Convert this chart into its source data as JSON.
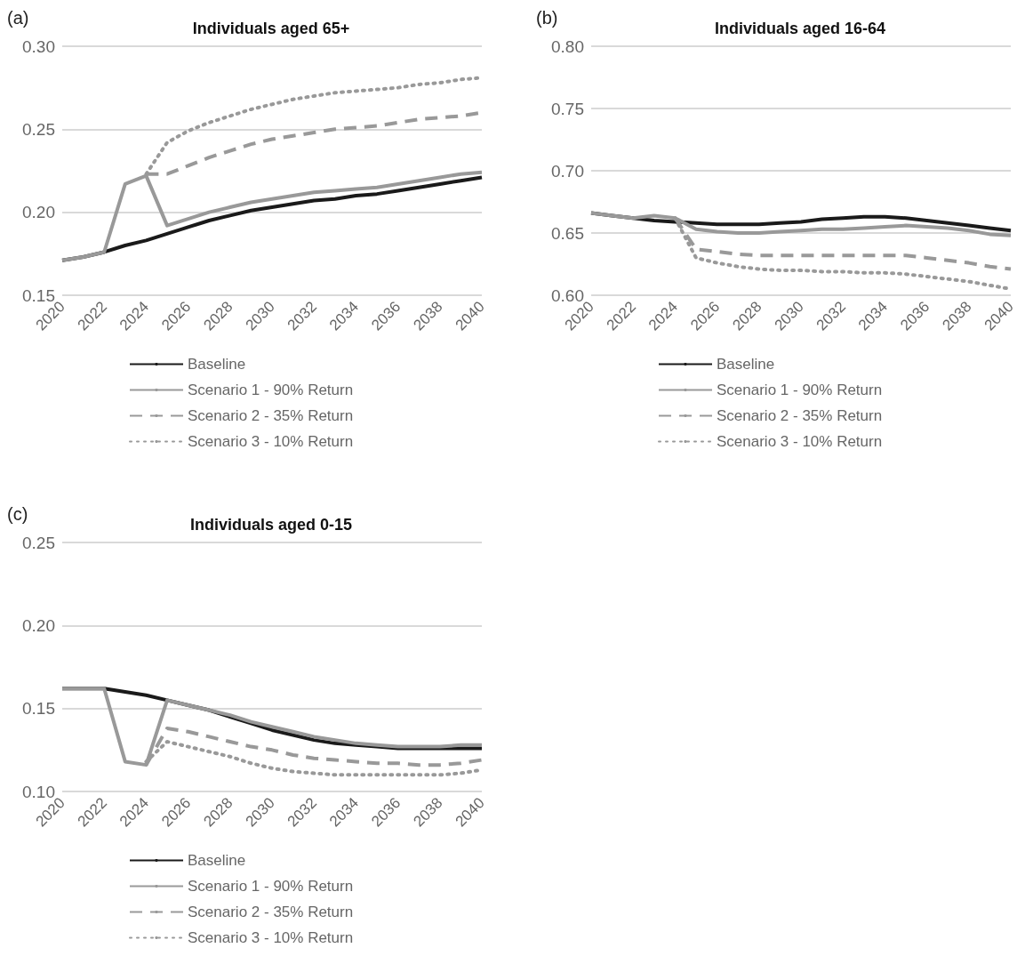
{
  "chart_data": [
    {
      "type": "line",
      "title": "Individuals aged 65+",
      "annotations": [
        "(a)"
      ],
      "x": [
        2020,
        2021,
        2022,
        2023,
        2024,
        2025,
        2026,
        2027,
        2028,
        2029,
        2030,
        2031,
        2032,
        2033,
        2034,
        2035,
        2036,
        2037,
        2038,
        2039,
        2040
      ],
      "xlim": [
        2020,
        2040
      ],
      "xticks": [
        2020,
        2022,
        2024,
        2026,
        2028,
        2030,
        2032,
        2034,
        2036,
        2038,
        2040
      ],
      "ylim": [
        0.15,
        0.3
      ],
      "yticks": [
        {
          "value": 0.15,
          "label": "0.15"
        },
        {
          "value": 0.2,
          "label": "0.20"
        },
        {
          "value": 0.25,
          "label": "0.25"
        },
        {
          "value": 0.3,
          "label": "0.30"
        }
      ],
      "grid": "y",
      "legend": "bottom",
      "marker": "none",
      "series": [
        {
          "name": "Baseline",
          "color": "#1a1a1a",
          "line_style": "solid",
          "values": [
            0.171,
            0.173,
            0.176,
            0.18,
            0.183,
            0.187,
            0.191,
            0.195,
            0.198,
            0.201,
            0.203,
            0.205,
            0.207,
            0.208,
            0.21,
            0.211,
            0.213,
            0.215,
            0.217,
            0.219,
            0.221
          ]
        },
        {
          "name": "Scenario 1 - 90% Return",
          "color": "#999999",
          "line_style": "solid",
          "values": [
            0.171,
            0.173,
            0.176,
            0.217,
            0.222,
            0.192,
            0.196,
            0.2,
            0.203,
            0.206,
            0.208,
            0.21,
            0.212,
            0.213,
            0.214,
            0.215,
            0.217,
            0.219,
            0.221,
            0.223,
            0.224
          ]
        },
        {
          "name": "Scenario 2 - 35% Return",
          "color": "#999999",
          "line_style": "dashed",
          "values": [
            null,
            null,
            null,
            null,
            0.223,
            0.223,
            0.228,
            0.233,
            0.237,
            0.241,
            0.244,
            0.246,
            0.248,
            0.25,
            0.251,
            0.252,
            0.254,
            0.256,
            0.257,
            0.258,
            0.26
          ]
        },
        {
          "name": "Scenario 3 - 10% Return",
          "color": "#999999",
          "line_style": "dotted",
          "values": [
            null,
            null,
            null,
            null,
            0.223,
            0.242,
            0.249,
            0.254,
            0.258,
            0.262,
            0.265,
            0.268,
            0.27,
            0.272,
            0.273,
            0.274,
            0.275,
            0.277,
            0.278,
            0.28,
            0.281
          ]
        }
      ]
    },
    {
      "type": "line",
      "title": "Individuals aged 16-64",
      "annotations": [
        "(b)"
      ],
      "x": [
        2020,
        2021,
        2022,
        2023,
        2024,
        2025,
        2026,
        2027,
        2028,
        2029,
        2030,
        2031,
        2032,
        2033,
        2034,
        2035,
        2036,
        2037,
        2038,
        2039,
        2040
      ],
      "xlim": [
        2020,
        2040
      ],
      "xticks": [
        2020,
        2022,
        2024,
        2026,
        2028,
        2030,
        2032,
        2034,
        2036,
        2038,
        2040
      ],
      "ylim": [
        0.6,
        0.8
      ],
      "yticks": [
        {
          "value": 0.6,
          "label": "0.60"
        },
        {
          "value": 0.65,
          "label": "0.65"
        },
        {
          "value": 0.7,
          "label": "0.70"
        },
        {
          "value": 0.75,
          "label": "0.75"
        },
        {
          "value": 0.8,
          "label": "0.80"
        }
      ],
      "grid": "y",
      "legend": "bottom",
      "marker": "none",
      "series": [
        {
          "name": "Baseline",
          "color": "#1a1a1a",
          "line_style": "solid",
          "values": [
            0.666,
            0.664,
            0.662,
            0.66,
            0.659,
            0.658,
            0.657,
            0.657,
            0.657,
            0.658,
            0.659,
            0.661,
            0.662,
            0.663,
            0.663,
            0.662,
            0.66,
            0.658,
            0.656,
            0.654,
            0.652
          ]
        },
        {
          "name": "Scenario 1 - 90% Return",
          "color": "#999999",
          "line_style": "solid",
          "values": [
            0.666,
            0.664,
            0.662,
            0.664,
            0.662,
            0.653,
            0.651,
            0.65,
            0.65,
            0.651,
            0.652,
            0.653,
            0.653,
            0.654,
            0.655,
            0.656,
            0.655,
            0.654,
            0.652,
            0.649,
            0.648
          ]
        },
        {
          "name": "Scenario 2 - 35% Return",
          "color": "#999999",
          "line_style": "dashed",
          "values": [
            null,
            null,
            null,
            null,
            0.662,
            0.637,
            0.635,
            0.633,
            0.632,
            0.632,
            0.632,
            0.632,
            0.632,
            0.632,
            0.632,
            0.632,
            0.63,
            0.628,
            0.626,
            0.623,
            0.621
          ]
        },
        {
          "name": "Scenario 3 - 10% Return",
          "color": "#999999",
          "line_style": "dotted",
          "values": [
            null,
            null,
            null,
            null,
            0.662,
            0.63,
            0.626,
            0.623,
            0.621,
            0.62,
            0.62,
            0.619,
            0.619,
            0.618,
            0.618,
            0.617,
            0.615,
            0.613,
            0.611,
            0.608,
            0.605
          ]
        }
      ]
    },
    {
      "type": "line",
      "title": "Individuals aged 0-15",
      "annotations": [
        "(c)"
      ],
      "x": [
        2020,
        2021,
        2022,
        2023,
        2024,
        2025,
        2026,
        2027,
        2028,
        2029,
        2030,
        2031,
        2032,
        2033,
        2034,
        2035,
        2036,
        2037,
        2038,
        2039,
        2040
      ],
      "xlim": [
        2020,
        2040
      ],
      "xticks": [
        2020,
        2022,
        2024,
        2026,
        2028,
        2030,
        2032,
        2034,
        2036,
        2038,
        2040
      ],
      "ylim": [
        0.1,
        0.25
      ],
      "yticks": [
        {
          "value": 0.1,
          "label": "0.10"
        },
        {
          "value": 0.15,
          "label": "0.15"
        },
        {
          "value": 0.2,
          "label": "0.20"
        },
        {
          "value": 0.25,
          "label": "0.25"
        }
      ],
      "grid": "y",
      "legend": "bottom",
      "marker": "none",
      "series": [
        {
          "name": "Baseline",
          "color": "#1a1a1a",
          "line_style": "solid",
          "values": [
            0.162,
            0.162,
            0.162,
            0.16,
            0.158,
            0.155,
            0.152,
            0.149,
            0.145,
            0.141,
            0.137,
            0.134,
            0.131,
            0.129,
            0.128,
            0.127,
            0.126,
            0.126,
            0.126,
            0.126,
            0.126
          ]
        },
        {
          "name": "Scenario 1 - 90% Return",
          "color": "#999999",
          "line_style": "solid",
          "values": [
            0.162,
            0.162,
            0.162,
            0.118,
            0.116,
            0.155,
            0.152,
            0.149,
            0.146,
            0.142,
            0.139,
            0.136,
            0.133,
            0.131,
            0.129,
            0.128,
            0.127,
            0.127,
            0.127,
            0.128,
            0.128
          ]
        },
        {
          "name": "Scenario 2 - 35% Return",
          "color": "#999999",
          "line_style": "dashed",
          "values": [
            null,
            null,
            null,
            null,
            0.116,
            0.138,
            0.136,
            0.133,
            0.13,
            0.127,
            0.125,
            0.122,
            0.12,
            0.119,
            0.118,
            0.117,
            0.117,
            0.116,
            0.116,
            0.117,
            0.119
          ]
        },
        {
          "name": "Scenario 3 - 10% Return",
          "color": "#999999",
          "line_style": "dotted",
          "values": [
            null,
            null,
            null,
            null,
            0.118,
            0.13,
            0.127,
            0.124,
            0.121,
            0.117,
            0.114,
            0.112,
            0.111,
            0.11,
            0.11,
            0.11,
            0.11,
            0.11,
            0.11,
            0.111,
            0.113
          ]
        }
      ]
    }
  ]
}
